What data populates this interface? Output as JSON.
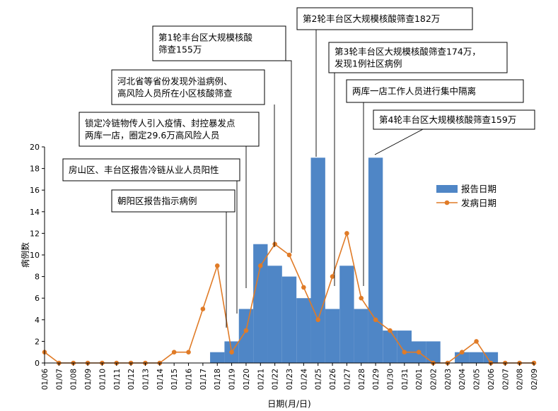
{
  "chart_data": {
    "type": "bar+line",
    "title": "",
    "xlabel": "日期(月/日)",
    "ylabel": "病例数",
    "ylim": [
      0,
      20
    ],
    "yticks": [
      0,
      2,
      4,
      6,
      8,
      10,
      12,
      14,
      16,
      18,
      20
    ],
    "grid": false,
    "legend_position": "right",
    "colors": {
      "bar": "#4f86c6",
      "line": "#e07b27"
    },
    "categories": [
      "01/06",
      "01/07",
      "01/08",
      "01/09",
      "01/10",
      "01/11",
      "01/12",
      "01/13",
      "01/14",
      "01/15",
      "01/16",
      "01/17",
      "01/18",
      "01/19",
      "01/20",
      "01/21",
      "01/22",
      "01/23",
      "01/24",
      "01/25",
      "01/26",
      "01/27",
      "01/28",
      "01/29",
      "01/30",
      "01/31",
      "02/01",
      "02/02",
      "02/03",
      "02/04",
      "02/05",
      "02/06",
      "02/07",
      "02/08",
      "02/09"
    ],
    "series": [
      {
        "name": "报告日期",
        "kind": "bar",
        "values": [
          0,
          0,
          0,
          0,
          0,
          0,
          0,
          0,
          0,
          0,
          0,
          0,
          1,
          2,
          5,
          11,
          9,
          8,
          6,
          19,
          5,
          9,
          5,
          19,
          3,
          3,
          2,
          2,
          0,
          1,
          1,
          1,
          0,
          0,
          0
        ]
      },
      {
        "name": "发病日期",
        "kind": "line",
        "values": [
          1,
          0,
          0,
          0,
          0,
          0,
          0,
          0,
          0,
          1,
          1,
          5,
          9,
          1,
          3,
          9,
          11,
          10,
          7,
          4,
          8,
          12,
          6,
          4,
          3,
          1,
          1,
          0,
          0,
          1,
          2,
          0,
          0,
          0,
          0
        ]
      }
    ],
    "annotations": [
      {
        "id": "a1",
        "lines": [
          "朝阳区报告指示病例"
        ],
        "date": "01/18"
      },
      {
        "id": "a2",
        "lines": [
          "房山区、丰台区报告冷链从业人员阳性"
        ],
        "date": "01/19"
      },
      {
        "id": "a3",
        "lines": [
          "锁定冷链物传人引入疫情、封控暴发点",
          "两库一店，圈定29.6万高风险人员"
        ],
        "date": "01/20"
      },
      {
        "id": "a4",
        "lines": [
          "河北省等省份发现外溢病例、",
          "高风险人员所在小区核酸筛查"
        ],
        "date": "01/22"
      },
      {
        "id": "a5",
        "lines": [
          "第1轮丰台区大规模核酸",
          "筛查155万"
        ],
        "date": "01/23"
      },
      {
        "id": "a6",
        "lines": [
          "第2轮丰台区大规模核酸筛查182万"
        ],
        "date": "01/25"
      },
      {
        "id": "a7",
        "lines": [
          "第3轮丰台区大规模核酸筛查174万，",
          "发现1例社区病例"
        ],
        "date": "01/26"
      },
      {
        "id": "a8",
        "lines": [
          "两库一店工作人员进行集中隔离"
        ],
        "date": "01/28"
      },
      {
        "id": "a9",
        "lines": [
          "第4轮丰台区大规模核酸筛查159万"
        ],
        "date": "01/29"
      }
    ]
  }
}
